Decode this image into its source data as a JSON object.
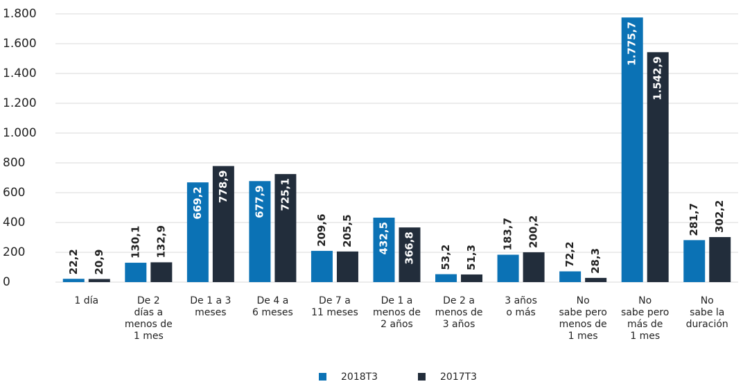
{
  "chart_data": {
    "type": "bar",
    "categories": [
      "1 día",
      "De 2\ndías a\nmenos de\n1 mes",
      "De 1 a 3\nmeses",
      "De 4 a\n6 meses",
      "De 7 a\n11 meses",
      "De 1 a\nmenos de\n2 años",
      "De 2 a\nmenos de\n3 años",
      "3 años\no más",
      "No\nsabe pero\nmenos de\n1 mes",
      "No\nsabe pero\nmás de\n1 mes",
      "No\nsabe la\nduración"
    ],
    "series": [
      {
        "name": "2018T3",
        "color": "#0b72b5",
        "values": [
          22.2,
          130.1,
          669.2,
          677.9,
          209.6,
          432.5,
          53.2,
          183.7,
          72.2,
          1775.7,
          281.7
        ],
        "value_labels": [
          "22,2",
          "130,1",
          "669,2",
          "677,9",
          "209,6",
          "432,5",
          "53,2",
          "183,7",
          "72,2",
          "1.775,7",
          "281,7"
        ]
      },
      {
        "name": "2017T3",
        "color": "#222d3b",
        "values": [
          20.9,
          132.9,
          778.9,
          725.1,
          205.5,
          366.8,
          51.3,
          200.2,
          28.3,
          1542.9,
          302.2
        ],
        "value_labels": [
          "20,9",
          "132,9",
          "778,9",
          "725,1",
          "205,5",
          "366,8",
          "51,3",
          "200,2",
          "28,3",
          "1.542,9",
          "302,2"
        ]
      }
    ],
    "ylim": [
      0,
      1800
    ],
    "yticks": [
      0,
      200,
      400,
      600,
      800,
      {
        "value": 1000,
        "label": "1.000"
      },
      {
        "value": 1200,
        "label": "1.200"
      },
      {
        "value": 1400,
        "label": "1.400"
      },
      {
        "value": 1600,
        "label": "1.600"
      },
      {
        "value": 1800,
        "label": "1.800"
      }
    ],
    "grid": true,
    "legend": "bottom"
  }
}
